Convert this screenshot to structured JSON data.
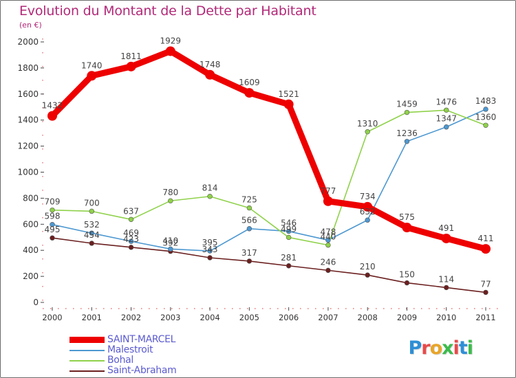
{
  "header": {
    "title": "Evolution du Montant de la Dette par Habitant",
    "subtitle": "(en €)"
  },
  "brand": {
    "text": "Proxiti",
    "colors": [
      "#2e8fd6",
      "#e84a4a",
      "#e8a52a",
      "#3dbb4c",
      "#e84a4a",
      "#2e8fd6",
      "#3dbb4c"
    ]
  },
  "chart_data": {
    "type": "line",
    "categories": [
      "2000",
      "2001",
      "2002",
      "2003",
      "2004",
      "2005",
      "2006",
      "2007",
      "2008",
      "2009",
      "2010",
      "2011"
    ],
    "ylim": [
      0,
      2000
    ],
    "yticks": [
      0,
      200,
      400,
      600,
      800,
      1000,
      1200,
      1400,
      1600,
      1800,
      2000
    ],
    "grid": false,
    "legend_position": "bottom-left",
    "series": [
      {
        "name": "SAINT-MARCEL",
        "color": "#ee0000",
        "values": [
          1432,
          1740,
          1811,
          1929,
          1748,
          1609,
          1521,
          777,
          734,
          575,
          491,
          411
        ],
        "labels": [
          "1432",
          "1740",
          "1811",
          "1929",
          "1748",
          "1609",
          "1521",
          "777",
          "734",
          "575",
          "491",
          "411"
        ]
      },
      {
        "name": "Malestroit",
        "color": "#4d98d1",
        "values": [
          598,
          532,
          469,
          410,
          395,
          566,
          546,
          478,
          632,
          1236,
          1347,
          1483
        ],
        "labels": [
          "598",
          "532",
          "469",
          "410",
          "395",
          "566",
          "546",
          "478",
          "632",
          "1236",
          "1347",
          "1483"
        ]
      },
      {
        "name": "Bohal",
        "color": "#8fd14a",
        "values": [
          709,
          700,
          637,
          780,
          814,
          725,
          499,
          440,
          1310,
          1459,
          1476,
          1360
        ],
        "labels": [
          "709",
          "700",
          "637",
          "780",
          "814",
          "725",
          "499",
          "440",
          "1310",
          "1459",
          "1476",
          "1360"
        ]
      },
      {
        "name": "Saint-Abraham",
        "color": "#6b1f1f",
        "values": [
          495,
          454,
          423,
          392,
          343,
          317,
          281,
          246,
          210,
          150,
          114,
          77
        ],
        "labels": [
          "495",
          "454",
          "423",
          "392",
          "343",
          "317",
          "281",
          "246",
          "210",
          "150",
          "114",
          "77"
        ]
      }
    ]
  }
}
